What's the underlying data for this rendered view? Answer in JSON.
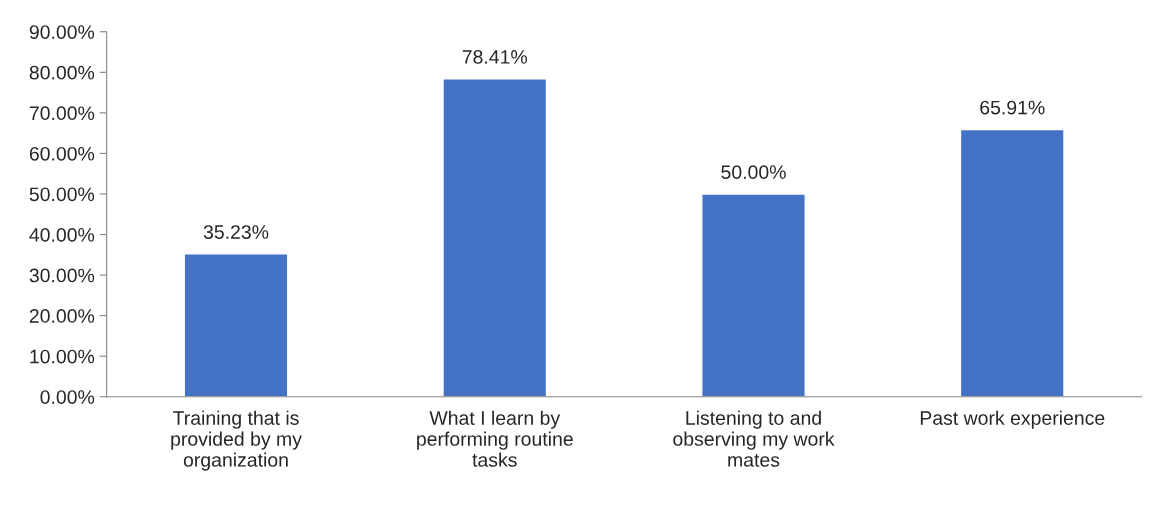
{
  "chart_data": {
    "type": "bar",
    "categories": [
      "Training that is provided by my organization",
      "What I learn by performing routine tasks",
      "Listening to and observing my work mates",
      "Past work experience"
    ],
    "values": [
      35.23,
      78.41,
      50.0,
      65.91
    ],
    "value_labels": [
      "35.23%",
      "78.41%",
      "50.00%",
      "65.91%"
    ],
    "color": "#4472c4",
    "ylim": [
      0,
      90
    ],
    "yticks": [
      {
        "value": 0,
        "label": "0.00%"
      },
      {
        "value": 10,
        "label": "10.00%"
      },
      {
        "value": 20,
        "label": "20.00%"
      },
      {
        "value": 30,
        "label": "30.00%"
      },
      {
        "value": 40,
        "label": "40.00%"
      },
      {
        "value": 50,
        "label": "50.00%"
      },
      {
        "value": 60,
        "label": "60.00%"
      },
      {
        "value": 70,
        "label": "70.00%"
      },
      {
        "value": 80,
        "label": "80.00%"
      },
      {
        "value": 90,
        "label": "90.00%"
      }
    ],
    "grid": false
  }
}
